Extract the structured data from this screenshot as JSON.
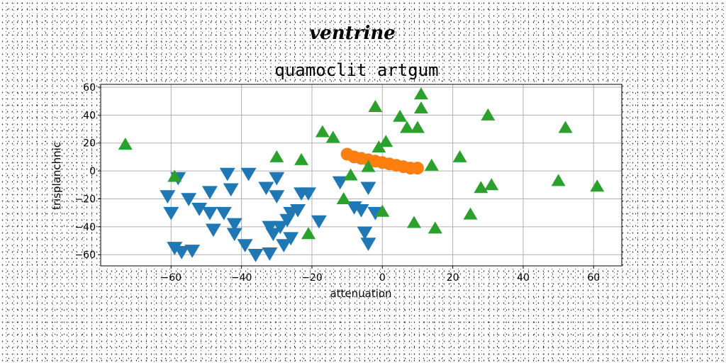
{
  "chart_data": {
    "type": "scatter",
    "suptitle": "ventrine",
    "title": "quamoclit artgum",
    "xlabel": "attenuation",
    "ylabel": "trisplanchnic",
    "xlim": [
      -80,
      68
    ],
    "ylim": [
      -68,
      62
    ],
    "xticks": [
      -60,
      -40,
      -20,
      0,
      20,
      40,
      60
    ],
    "yticks": [
      -60,
      -40,
      -20,
      0,
      20,
      40,
      60
    ],
    "xtick_labels": [
      "−60",
      "−40",
      "−20",
      "0",
      "20",
      "40",
      "60"
    ],
    "ytick_labels": [
      "−60",
      "−40",
      "−20",
      "0",
      "20",
      "40",
      "60"
    ],
    "grid": true,
    "series": [
      {
        "marker": "triangle-down",
        "color": "#1f77b4",
        "points": [
          [
            -58,
            -5
          ],
          [
            -61,
            -18
          ],
          [
            -60,
            -30
          ],
          [
            -59,
            -55
          ],
          [
            -57,
            -58
          ],
          [
            -54,
            -57
          ],
          [
            -55,
            -20
          ],
          [
            -52,
            -27
          ],
          [
            -49,
            -30
          ],
          [
            -48,
            -42
          ],
          [
            -49,
            -15
          ],
          [
            -45,
            -30
          ],
          [
            -44,
            -2
          ],
          [
            -43,
            -13
          ],
          [
            -42,
            -38
          ],
          [
            -42,
            -45
          ],
          [
            -38,
            -2
          ],
          [
            -39,
            -53
          ],
          [
            -36,
            -60
          ],
          [
            -33,
            -12
          ],
          [
            -32,
            -59
          ],
          [
            -32,
            -40
          ],
          [
            -31,
            -45
          ],
          [
            -30,
            -5
          ],
          [
            -30,
            -18
          ],
          [
            -29,
            -40
          ],
          [
            -28,
            -53
          ],
          [
            -27,
            -35
          ],
          [
            -26,
            -48
          ],
          [
            -26,
            -30
          ],
          [
            -24,
            -28
          ],
          [
            -23,
            -16
          ],
          [
            -21,
            -16
          ],
          [
            -18,
            -36
          ],
          [
            -12,
            -8
          ],
          [
            -8,
            -26
          ],
          [
            -6,
            -28
          ],
          [
            -5,
            -44
          ],
          [
            -4,
            -52
          ],
          [
            -4,
            -12
          ],
          [
            -2,
            -30
          ]
        ]
      },
      {
        "marker": "circle",
        "color": "#ff7f0e",
        "points": [
          [
            -10,
            12
          ],
          [
            -8,
            10
          ],
          [
            -6,
            9
          ],
          [
            -4,
            8
          ],
          [
            -2,
            7
          ],
          [
            0,
            6
          ],
          [
            2,
            5
          ],
          [
            4,
            4
          ],
          [
            6,
            3
          ],
          [
            8,
            2
          ],
          [
            10,
            2
          ]
        ]
      },
      {
        "marker": "triangle-up",
        "color": "#2ca02c",
        "points": [
          [
            -73,
            19
          ],
          [
            -59,
            -4
          ],
          [
            -30,
            10
          ],
          [
            -23,
            8
          ],
          [
            -21,
            -45
          ],
          [
            -17,
            28
          ],
          [
            -14,
            24
          ],
          [
            -11,
            -20
          ],
          [
            -9,
            -3
          ],
          [
            -4,
            3
          ],
          [
            -2,
            46
          ],
          [
            -1,
            17
          ],
          [
            0,
            -29
          ],
          [
            1,
            21
          ],
          [
            5,
            39
          ],
          [
            7,
            31
          ],
          [
            9,
            -37
          ],
          [
            10,
            31
          ],
          [
            11,
            45
          ],
          [
            11,
            55
          ],
          [
            14,
            4
          ],
          [
            15,
            -41
          ],
          [
            22,
            10
          ],
          [
            25,
            -31
          ],
          [
            28,
            -12
          ],
          [
            30,
            40
          ],
          [
            31,
            -10
          ],
          [
            50,
            -7
          ],
          [
            52,
            31
          ],
          [
            61,
            -11
          ]
        ]
      }
    ]
  }
}
